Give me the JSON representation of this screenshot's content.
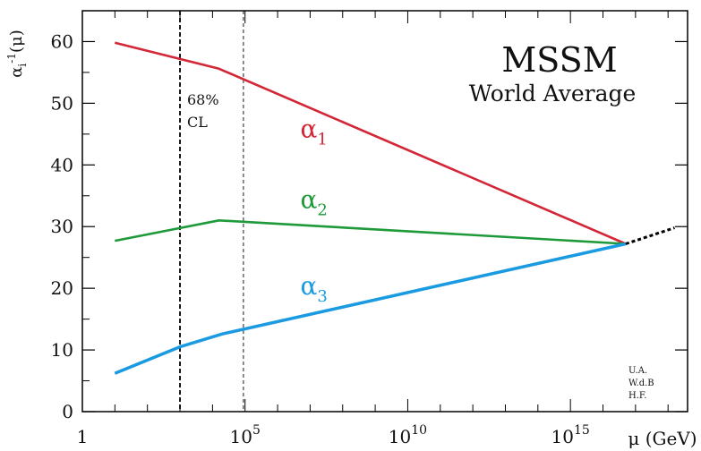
{
  "chart_data": {
    "type": "line",
    "title": "MSSM",
    "subtitle": "World Average",
    "ylabel": {
      "base": "α",
      "sub": "i",
      "sup": "-1",
      "tail": "(μ)"
    },
    "xlabel": "μ (GeV)",
    "x_scale": "log10",
    "xlim_log10": [
      0,
      18.6
    ],
    "ylim": [
      0,
      65
    ],
    "x_ticks": [
      {
        "log10": 0,
        "base": "1",
        "exp": ""
      },
      {
        "log10": 5,
        "base": "10",
        "exp": "5"
      },
      {
        "log10": 10,
        "base": "10",
        "exp": "10"
      },
      {
        "log10": 15,
        "base": "10",
        "exp": "15"
      }
    ],
    "y_ticks": [
      0,
      10,
      20,
      30,
      40,
      50,
      60
    ],
    "series": [
      {
        "name": "α1",
        "label_base": "α",
        "label_sub": "1",
        "color": "#d32636",
        "points_log10x": [
          [
            1,
            59.8
          ],
          [
            4.2,
            55.6
          ],
          [
            16.7,
            27.2
          ]
        ],
        "label_at": [
          6.7,
          44.5
        ]
      },
      {
        "name": "α2",
        "label_base": "α",
        "label_sub": "2",
        "color": "#1f9a3a",
        "points_log10x": [
          [
            1,
            27.7
          ],
          [
            4.2,
            31.0
          ],
          [
            16.7,
            27.2
          ]
        ],
        "label_at": [
          6.7,
          33.0
        ]
      },
      {
        "name": "α3",
        "label_base": "α",
        "label_sub": "3",
        "color": "#1a9ae0",
        "points_log10x": [
          [
            1,
            6.2
          ],
          [
            3.0,
            10.5
          ],
          [
            4.3,
            12.6
          ],
          [
            16.7,
            27.2
          ]
        ],
        "label_at": [
          6.7,
          19.0
        ]
      }
    ],
    "extrapolation": {
      "color": "#000000",
      "dash": "4,3",
      "points_log10x": [
        [
          16.7,
          27.2
        ],
        [
          18.2,
          29.8
        ]
      ]
    },
    "cl_band": {
      "label_line1": "68%",
      "label_line2": "CL",
      "lines_log10x": [
        [
          3.0,
          "thick"
        ],
        [
          4.95,
          "thin"
        ]
      ]
    },
    "credits": [
      "U.A.",
      "W.d.B",
      "H.F."
    ],
    "grid": false,
    "legend": "inline"
  }
}
